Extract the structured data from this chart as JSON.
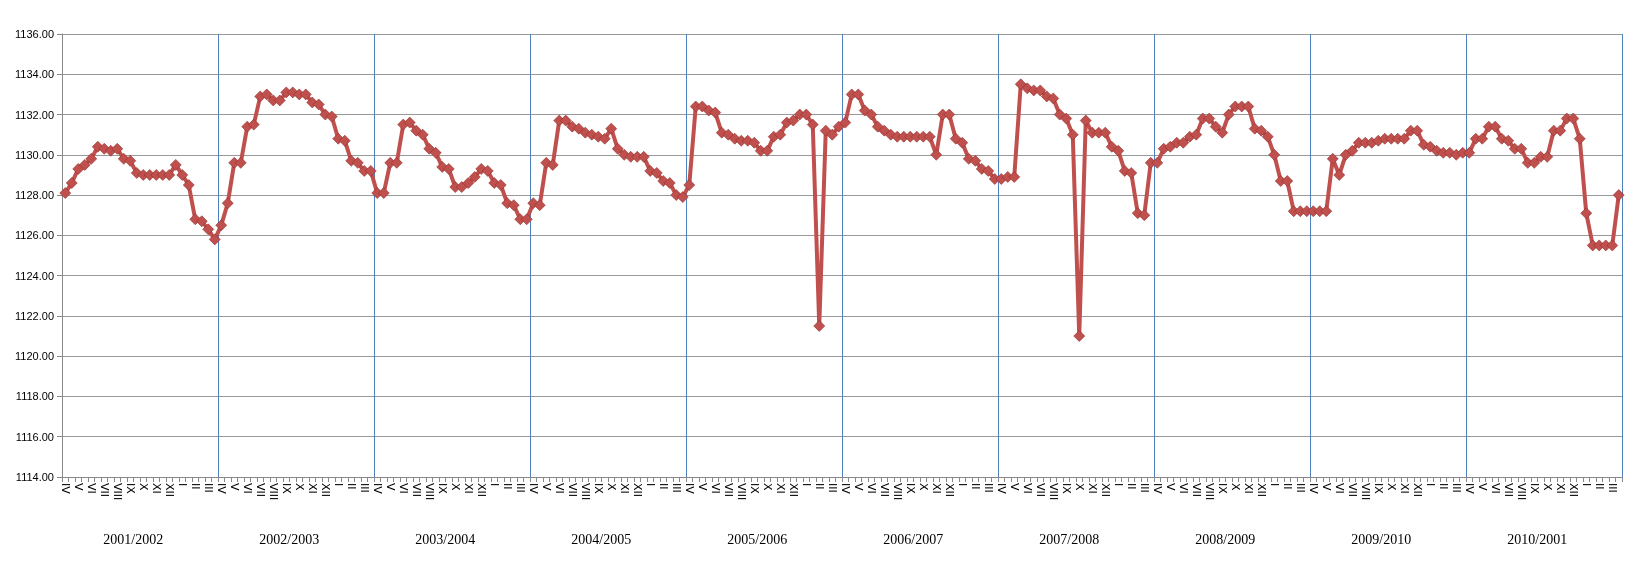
{
  "chart_data": {
    "type": "line",
    "categories": [
      "IV",
      null,
      "V",
      null,
      "VI",
      null,
      "VII",
      null,
      "VIII",
      null,
      "IX",
      null,
      "X",
      null,
      "XI",
      null,
      "XII",
      null,
      "I",
      null,
      "II",
      null,
      "III",
      null,
      "IV",
      null,
      "V",
      null,
      "VI",
      null,
      "VII",
      null,
      "VIII",
      null,
      "IX",
      null,
      "X",
      null,
      "XI",
      null,
      "XII",
      null,
      "I",
      null,
      "II",
      null,
      "III",
      null,
      "IV",
      null,
      "V",
      null,
      "VI",
      null,
      "VII",
      null,
      "VIII",
      null,
      "IX",
      null,
      "X",
      null,
      "XI",
      null,
      "XII",
      null,
      "I",
      null,
      "II",
      null,
      "III",
      null,
      "IV",
      null,
      "V",
      null,
      "VI",
      null,
      "VII",
      null,
      "VIII",
      null,
      "IX",
      null,
      "X",
      null,
      "XI",
      null,
      "XII",
      null,
      "I",
      null,
      "II",
      null,
      "III",
      null,
      "IV",
      null,
      "V",
      null,
      "VI",
      null,
      "VII",
      null,
      "VIII",
      null,
      "IX",
      null,
      "X",
      null,
      "XI",
      null,
      "XII",
      null,
      "I",
      null,
      "II",
      null,
      "III",
      null,
      "IV",
      null,
      "V",
      null,
      "VI",
      null,
      "VII",
      null,
      "VIII",
      null,
      "IX",
      null,
      "X",
      null,
      "XI",
      null,
      "XII",
      null,
      "I",
      null,
      "II",
      null,
      "III",
      null,
      "IV",
      null,
      "V",
      null,
      "VI",
      null,
      "VII",
      null,
      "VIII",
      null,
      "IX",
      null,
      "X",
      null,
      "XI",
      null,
      "XII",
      null,
      "I",
      null,
      "II",
      null,
      "III",
      null,
      "IV",
      null,
      "V",
      null,
      "VI",
      null,
      "VII",
      null,
      "VIII",
      null,
      "IX",
      null,
      "X",
      null,
      "XI",
      null,
      "XII",
      null,
      "I",
      null,
      "II",
      null,
      "III",
      null,
      "IV",
      null,
      "V",
      null,
      "VI",
      null,
      "VII",
      null,
      "VIII",
      null,
      "IX",
      null,
      "X",
      null,
      "XI",
      null,
      "XII",
      null,
      "I",
      null,
      "II",
      null,
      "III",
      null,
      "IV",
      null,
      "V",
      null,
      "VI",
      null,
      "VII",
      null,
      "VIII",
      null,
      "IX",
      null,
      "X",
      null,
      "XI",
      null,
      "XII",
      null,
      "I",
      null,
      "II",
      null,
      "III",
      null
    ],
    "series": [
      {
        "color": "#c0504d",
        "values": [
          1128.1,
          1128.6,
          1129.3,
          1129.5,
          1129.8,
          1130.4,
          1130.3,
          1130.2,
          1130.3,
          1129.8,
          1129.7,
          1129.1,
          1129.0,
          1129.0,
          1129.0,
          1129.0,
          1129.0,
          1129.5,
          1129.0,
          1128.5,
          1126.8,
          1126.7,
          1126.3,
          1125.8,
          1126.5,
          1127.6,
          1129.6,
          1129.6,
          1131.4,
          1131.5,
          1132.9,
          1133.0,
          1132.7,
          1132.7,
          1133.1,
          1133.1,
          1133.0,
          1133.0,
          1132.6,
          1132.5,
          1132.0,
          1131.9,
          1130.8,
          1130.7,
          1129.7,
          1129.6,
          1129.2,
          1129.2,
          1128.1,
          1128.1,
          1129.6,
          1129.6,
          1131.5,
          1131.6,
          1131.2,
          1131.0,
          1130.3,
          1130.1,
          1129.4,
          1129.3,
          1128.4,
          1128.4,
          1128.6,
          1128.9,
          1129.3,
          1129.2,
          1128.6,
          1128.5,
          1127.6,
          1127.5,
          1126.8,
          1126.8,
          1127.6,
          1127.5,
          1129.6,
          1129.5,
          1131.7,
          1131.7,
          1131.4,
          1131.3,
          1131.1,
          1131.0,
          1130.9,
          1130.8,
          1131.3,
          1130.3,
          1130.0,
          1129.9,
          1129.9,
          1129.9,
          1129.2,
          1129.1,
          1128.7,
          1128.6,
          1128.0,
          1127.9,
          1128.5,
          1132.4,
          1132.4,
          1132.2,
          1132.1,
          1131.1,
          1131.0,
          1130.8,
          1130.7,
          1130.7,
          1130.6,
          1130.2,
          1130.2,
          1130.9,
          1131.0,
          1131.6,
          1131.7,
          1132.0,
          1132.0,
          1131.5,
          1121.5,
          1131.2,
          1131.0,
          1131.4,
          1131.6,
          1133.0,
          1133.0,
          1132.2,
          1132.0,
          1131.4,
          1131.2,
          1131.0,
          1130.9,
          1130.9,
          1130.9,
          1130.9,
          1130.9,
          1130.9,
          1130.0,
          1132.0,
          1132.0,
          1130.8,
          1130.6,
          1129.8,
          1129.7,
          1129.3,
          1129.2,
          1128.8,
          1128.8,
          1128.9,
          1128.9,
          1133.5,
          1133.3,
          1133.2,
          1133.2,
          1132.9,
          1132.8,
          1132.0,
          1131.8,
          1131.0,
          1121.0,
          1131.7,
          1131.1,
          1131.1,
          1131.1,
          1130.4,
          1130.2,
          1129.2,
          1129.1,
          1127.1,
          1127.0,
          1129.6,
          1129.6,
          1130.3,
          1130.4,
          1130.6,
          1130.6,
          1130.9,
          1131.0,
          1131.8,
          1131.8,
          1131.4,
          1131.1,
          1132.0,
          1132.4,
          1132.4,
          1132.4,
          1131.3,
          1131.2,
          1130.9,
          1130.0,
          1128.7,
          1128.7,
          1127.2,
          1127.2,
          1127.2,
          1127.2,
          1127.2,
          1127.2,
          1129.8,
          1129.0,
          1130.0,
          1130.2,
          1130.6,
          1130.6,
          1130.6,
          1130.7,
          1130.8,
          1130.8,
          1130.8,
          1130.8,
          1131.2,
          1131.2,
          1130.5,
          1130.4,
          1130.2,
          1130.1,
          1130.1,
          1130.0,
          1130.1,
          1130.1,
          1130.8,
          1130.8,
          1131.4,
          1131.4,
          1130.8,
          1130.7,
          1130.3,
          1130.3,
          1129.6,
          1129.6,
          1129.9,
          1129.9,
          1131.2,
          1131.2,
          1131.8,
          1131.8,
          1130.8,
          1127.1,
          1125.5,
          1125.5,
          1125.5,
          1125.5,
          1128.0
        ]
      }
    ],
    "ylim": [
      1114,
      1136
    ],
    "yticks": [
      {
        "value": 1114,
        "label": "1114.00"
      },
      {
        "value": 1116,
        "label": "1116.00"
      },
      {
        "value": 1118,
        "label": "1118.00"
      },
      {
        "value": 1120,
        "label": "1120.00"
      },
      {
        "value": 1122,
        "label": "1122.00"
      },
      {
        "value": 1124,
        "label": "1124.00"
      },
      {
        "value": 1126,
        "label": "1126.00"
      },
      {
        "value": 1128,
        "label": "1128.00"
      },
      {
        "value": 1130,
        "label": "1130.00"
      },
      {
        "value": 1132,
        "label": "1132.00"
      },
      {
        "value": 1134,
        "label": "1134.00"
      },
      {
        "value": 1136,
        "label": "1136.00"
      }
    ],
    "annotations": [
      "2001/2002",
      "2002/2003",
      "2003/2004",
      "2004/2005",
      "2005/2006",
      "2006/2007",
      "2007/2008",
      "2008/2009",
      "2009/2010",
      "2010/2001"
    ],
    "grid": "y",
    "marker": "diamond",
    "line_style": "solid"
  }
}
